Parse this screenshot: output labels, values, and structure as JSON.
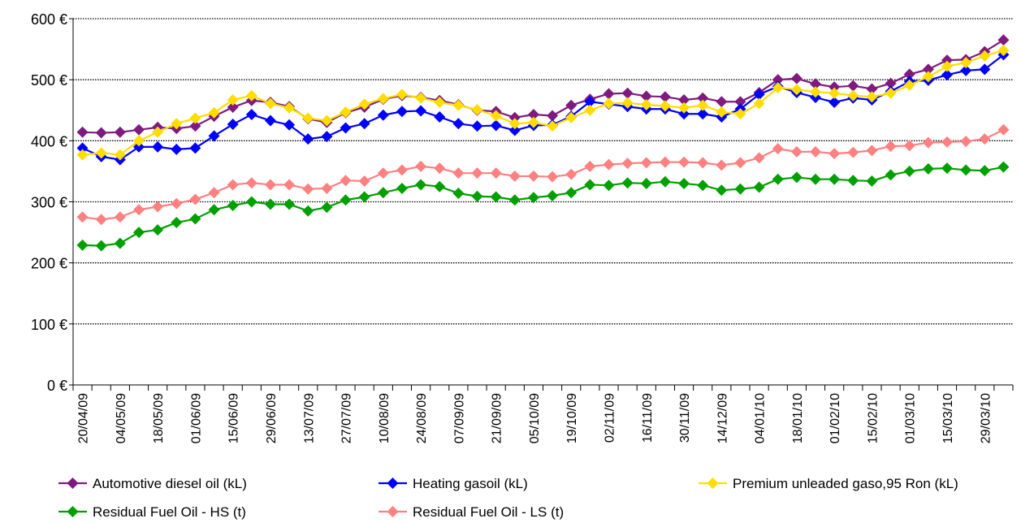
{
  "chart_data": {
    "type": "line",
    "title": "",
    "xlabel": "",
    "ylabel": "",
    "ylim": [
      0,
      600
    ],
    "y_ticks": [
      "0 €",
      "100 €",
      "200 €",
      "300 €",
      "400 €",
      "500 €",
      "600 €"
    ],
    "grid": "horizontal dotted",
    "legend_position": "bottom",
    "x": [
      "20/04/09",
      "27/04/09",
      "04/05/09",
      "11/05/09",
      "18/05/09",
      "25/05/09",
      "01/06/09",
      "08/06/09",
      "15/06/09",
      "22/06/09",
      "29/06/09",
      "06/07/09",
      "13/07/09",
      "20/07/09",
      "27/07/09",
      "03/08/09",
      "10/08/09",
      "17/08/09",
      "24/08/09",
      "31/08/09",
      "07/09/09",
      "14/09/09",
      "21/09/09",
      "28/09/09",
      "05/10/09",
      "12/10/09",
      "19/10/09",
      "26/10/09",
      "02/11/09",
      "09/11/09",
      "16/11/09",
      "23/11/09",
      "30/11/09",
      "07/12/09",
      "14/12/09",
      "21/12/09",
      "04/01/10",
      "11/01/10",
      "18/01/10",
      "25/01/10",
      "01/02/10",
      "08/02/10",
      "15/02/10",
      "22/02/10",
      "01/03/10",
      "08/03/10",
      "15/03/10",
      "22/03/10",
      "29/03/10",
      "05/04/10"
    ],
    "x_tick_labels": [
      "20/04/09",
      "04/05/09",
      "18/05/09",
      "01/06/09",
      "15/06/09",
      "29/06/09",
      "13/07/09",
      "27/07/09",
      "10/08/09",
      "24/08/09",
      "07/09/09",
      "21/09/09",
      "05/10/09",
      "19/10/09",
      "02/11/09",
      "16/11/09",
      "30/11/09",
      "14/12/09",
      "04/01/10",
      "18/01/10",
      "01/02/10",
      "15/02/10",
      "01/03/10",
      "15/03/10",
      "29/03/10"
    ],
    "series": [
      {
        "name": "Automotive diesel oil (kL)",
        "color": "#7f1a7f",
        "values": [
          414,
          413,
          414,
          418,
          422,
          420,
          424,
          440,
          455,
          466,
          463,
          456,
          436,
          430,
          446,
          455,
          468,
          474,
          471,
          466,
          459,
          450,
          448,
          438,
          443,
          441,
          458,
          468,
          477,
          478,
          473,
          472,
          467,
          470,
          464,
          464,
          479,
          500,
          502,
          493,
          488,
          490,
          485,
          494,
          509,
          517,
          532,
          533,
          546,
          565
        ]
      },
      {
        "name": "Heating gasoil (kL)",
        "color": "#0000ff",
        "values": [
          388,
          374,
          369,
          390,
          390,
          386,
          388,
          408,
          427,
          443,
          433,
          426,
          403,
          407,
          421,
          428,
          442,
          448,
          449,
          439,
          428,
          424,
          425,
          417,
          425,
          426,
          440,
          464,
          460,
          456,
          452,
          452,
          444,
          444,
          439,
          452,
          476,
          489,
          479,
          471,
          463,
          470,
          467,
          481,
          497,
          499,
          508,
          515,
          517,
          541
        ]
      },
      {
        "name": "Premium unleaded gaso,95 Ron (kL)",
        "color": "#ffdd00",
        "values": [
          377,
          380,
          377,
          400,
          414,
          428,
          437,
          446,
          467,
          474,
          461,
          454,
          437,
          433,
          447,
          460,
          469,
          476,
          470,
          463,
          458,
          451,
          441,
          428,
          430,
          424,
          438,
          450,
          461,
          462,
          459,
          457,
          454,
          458,
          447,
          444,
          461,
          487,
          484,
          480,
          478,
          474,
          472,
          478,
          491,
          505,
          522,
          528,
          539,
          548
        ]
      },
      {
        "name": "Residual Fuel Oil - HS (t)",
        "color": "#00a000",
        "values": [
          229,
          228,
          232,
          250,
          254,
          266,
          272,
          287,
          294,
          300,
          296,
          296,
          285,
          291,
          303,
          308,
          315,
          322,
          328,
          325,
          314,
          309,
          308,
          303,
          307,
          310,
          315,
          328,
          327,
          331,
          330,
          333,
          330,
          327,
          319,
          321,
          324,
          337,
          340,
          337,
          337,
          335,
          334,
          344,
          350,
          354,
          355,
          352,
          351,
          357
        ]
      },
      {
        "name": "Residual Fuel Oil - LS (t)",
        "color": "#ff8080",
        "values": [
          275,
          271,
          275,
          287,
          292,
          297,
          304,
          315,
          328,
          331,
          328,
          328,
          321,
          322,
          335,
          334,
          347,
          352,
          358,
          355,
          347,
          347,
          347,
          342,
          342,
          341,
          345,
          358,
          361,
          363,
          364,
          365,
          365,
          364,
          360,
          364,
          372,
          387,
          382,
          382,
          379,
          381,
          384,
          391,
          392,
          397,
          398,
          399,
          403,
          418
        ]
      }
    ]
  }
}
